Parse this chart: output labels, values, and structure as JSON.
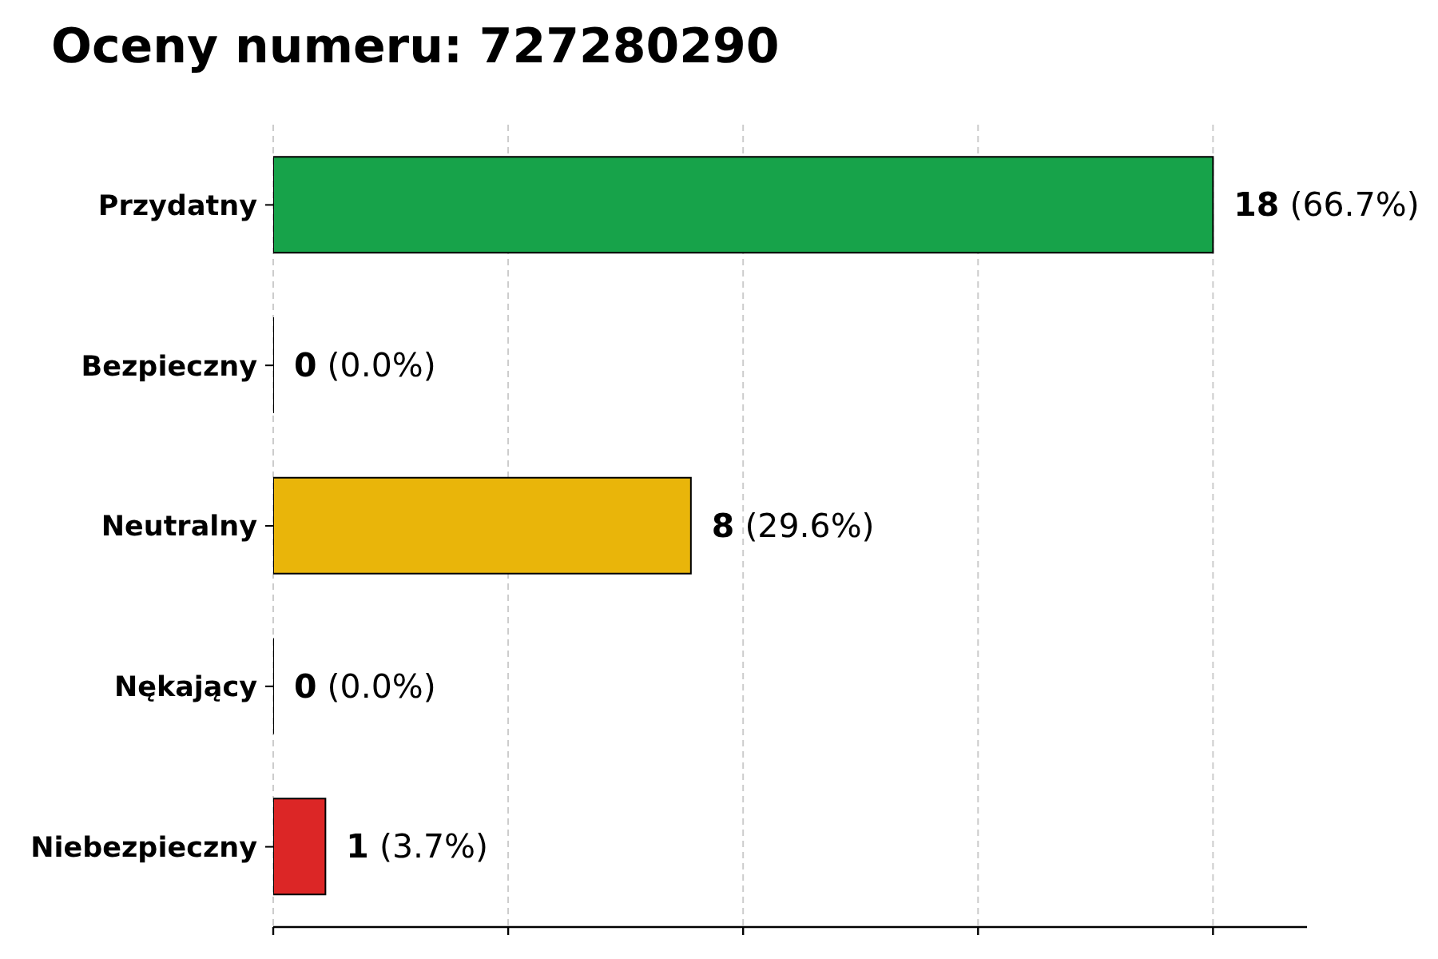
{
  "chart_data": {
    "type": "bar",
    "orientation": "horizontal",
    "title": "Oceny numeru: 727280290",
    "categories": [
      "Przydatny",
      "Bezpieczny",
      "Neutralny",
      "Nękający",
      "Niebezpieczny"
    ],
    "values": [
      18,
      0,
      8,
      0,
      1
    ],
    "colors": [
      "#17a34a",
      null,
      "#e9b50a",
      null,
      "#dc2626"
    ],
    "value_labels": [
      "18 (66.7%)",
      "0 (0.0%)",
      "8 (29.6%)",
      "0 (0.0%)",
      "1 (3.7%)"
    ],
    "xlim": [
      0,
      19.8
    ],
    "xticks": [
      {
        "value": 0,
        "label": null
      },
      {
        "value": 4.5,
        "label": null
      },
      {
        "value": 9,
        "label": null
      },
      {
        "value": 13.5,
        "label": null
      },
      {
        "value": 18,
        "label": null
      }
    ],
    "grid": "x",
    "tick_labels": "y"
  }
}
